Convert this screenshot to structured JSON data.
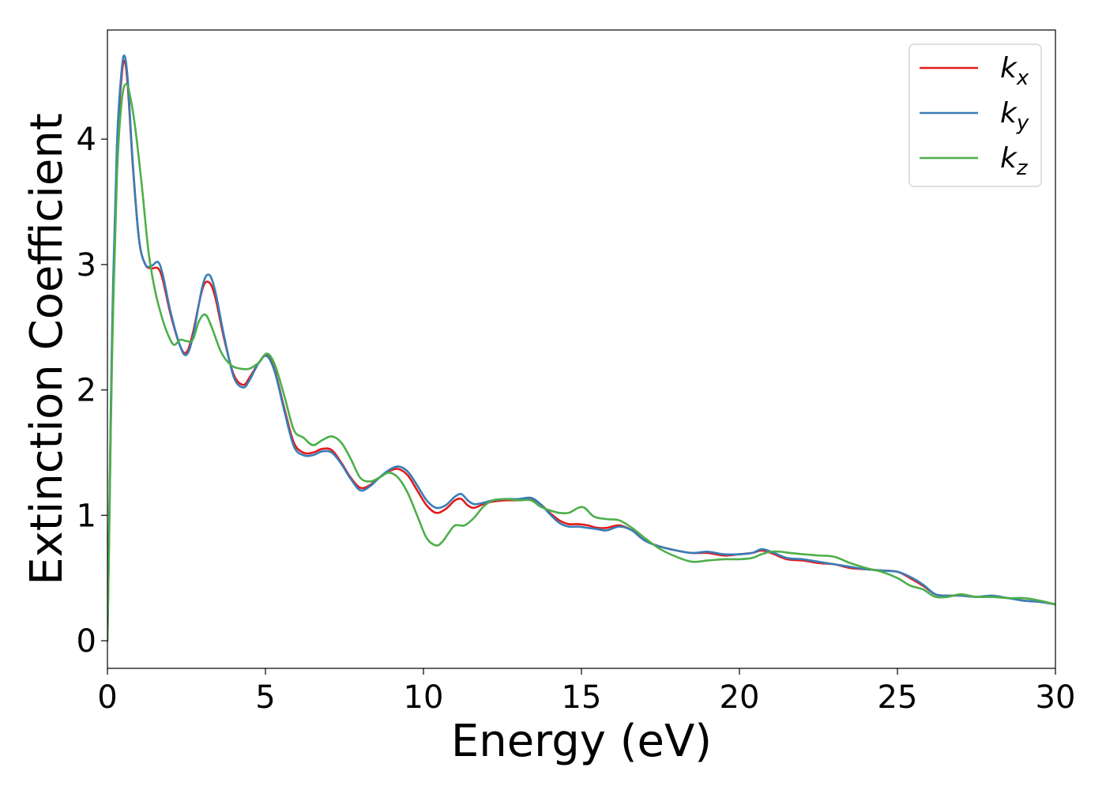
{
  "chart_data": {
    "type": "line",
    "title": "",
    "xlabel": "Energy (eV)",
    "ylabel": "Extinction Coefficient",
    "xlim": [
      0,
      30
    ],
    "ylim": [
      -0.22,
      4.87
    ],
    "xticks": [
      0,
      5,
      10,
      15,
      20,
      25,
      30
    ],
    "yticks": [
      0,
      1,
      2,
      3,
      4
    ],
    "grid": false,
    "legend_position": "top-right",
    "series": [
      {
        "name": "k",
        "subscript": "x",
        "color": "#e41a1c",
        "x": [
          0,
          0.05,
          0.15,
          0.3,
          0.45,
          0.55,
          0.65,
          0.8,
          1.0,
          1.2,
          1.4,
          1.6,
          1.75,
          2.0,
          2.3,
          2.5,
          2.7,
          3.0,
          3.2,
          3.4,
          3.7,
          4.0,
          4.3,
          4.5,
          4.8,
          5.05,
          5.3,
          5.6,
          5.9,
          6.2,
          6.5,
          6.8,
          7.1,
          7.4,
          7.7,
          8.0,
          8.3,
          8.6,
          8.9,
          9.2,
          9.5,
          9.8,
          10.1,
          10.4,
          10.7,
          11.0,
          11.2,
          11.4,
          11.6,
          11.9,
          12.2,
          12.6,
          13.0,
          13.4,
          13.7,
          14.0,
          14.3,
          14.6,
          14.9,
          15.2,
          15.5,
          15.8,
          16.2,
          16.6,
          17.0,
          17.5,
          18.0,
          18.5,
          19.0,
          19.5,
          20.0,
          20.4,
          20.7,
          21.0,
          21.5,
          22.0,
          22.5,
          23.0,
          23.5,
          24.0,
          24.5,
          25.0,
          25.4,
          25.8,
          26.2,
          26.6,
          27.0,
          27.5,
          28.0,
          28.5,
          29.0,
          29.5,
          30.0
        ],
        "y": [
          0,
          0.8,
          2.4,
          3.9,
          4.5,
          4.62,
          4.4,
          3.8,
          3.2,
          3.0,
          2.97,
          2.97,
          2.88,
          2.6,
          2.35,
          2.3,
          2.45,
          2.8,
          2.86,
          2.75,
          2.4,
          2.12,
          2.04,
          2.1,
          2.22,
          2.28,
          2.15,
          1.85,
          1.58,
          1.5,
          1.5,
          1.53,
          1.52,
          1.42,
          1.3,
          1.22,
          1.24,
          1.3,
          1.35,
          1.37,
          1.32,
          1.2,
          1.08,
          1.02,
          1.05,
          1.12,
          1.13,
          1.08,
          1.06,
          1.09,
          1.11,
          1.12,
          1.12,
          1.13,
          1.09,
          1.02,
          0.96,
          0.93,
          0.93,
          0.92,
          0.9,
          0.9,
          0.92,
          0.88,
          0.8,
          0.75,
          0.72,
          0.7,
          0.7,
          0.68,
          0.69,
          0.7,
          0.72,
          0.7,
          0.65,
          0.64,
          0.62,
          0.61,
          0.58,
          0.57,
          0.56,
          0.55,
          0.5,
          0.44,
          0.37,
          0.36,
          0.36,
          0.35,
          0.35,
          0.34,
          0.32,
          0.31,
          0.29
        ]
      },
      {
        "name": "k",
        "subscript": "y",
        "color": "#377eb8",
        "x": [
          0,
          0.05,
          0.15,
          0.3,
          0.45,
          0.55,
          0.65,
          0.8,
          1.0,
          1.2,
          1.4,
          1.6,
          1.75,
          2.0,
          2.3,
          2.5,
          2.7,
          3.0,
          3.2,
          3.4,
          3.7,
          4.0,
          4.3,
          4.5,
          4.8,
          5.05,
          5.3,
          5.6,
          5.9,
          6.2,
          6.5,
          6.8,
          7.1,
          7.4,
          7.7,
          8.0,
          8.3,
          8.6,
          8.9,
          9.2,
          9.5,
          9.8,
          10.1,
          10.4,
          10.7,
          11.0,
          11.2,
          11.4,
          11.6,
          11.9,
          12.2,
          12.6,
          13.0,
          13.4,
          13.7,
          14.0,
          14.3,
          14.6,
          14.9,
          15.2,
          15.5,
          15.8,
          16.2,
          16.6,
          17.0,
          17.5,
          18.0,
          18.5,
          19.0,
          19.5,
          20.0,
          20.4,
          20.7,
          21.0,
          21.5,
          22.0,
          22.5,
          23.0,
          23.5,
          24.0,
          24.5,
          25.0,
          25.4,
          25.8,
          26.2,
          26.6,
          27.0,
          27.5,
          28.0,
          28.5,
          29.0,
          29.5,
          30.0
        ],
        "y": [
          0,
          0.85,
          2.5,
          3.95,
          4.55,
          4.66,
          4.45,
          3.82,
          3.2,
          3.0,
          2.99,
          3.02,
          2.92,
          2.62,
          2.35,
          2.28,
          2.42,
          2.82,
          2.92,
          2.8,
          2.42,
          2.1,
          2.02,
          2.08,
          2.22,
          2.27,
          2.14,
          1.83,
          1.55,
          1.48,
          1.48,
          1.51,
          1.5,
          1.41,
          1.29,
          1.2,
          1.23,
          1.3,
          1.36,
          1.39,
          1.35,
          1.24,
          1.12,
          1.06,
          1.08,
          1.15,
          1.17,
          1.12,
          1.09,
          1.1,
          1.12,
          1.13,
          1.13,
          1.14,
          1.09,
          1.01,
          0.94,
          0.91,
          0.91,
          0.9,
          0.89,
          0.88,
          0.91,
          0.88,
          0.8,
          0.75,
          0.72,
          0.7,
          0.71,
          0.69,
          0.69,
          0.7,
          0.73,
          0.71,
          0.66,
          0.65,
          0.63,
          0.61,
          0.59,
          0.57,
          0.56,
          0.55,
          0.51,
          0.45,
          0.37,
          0.36,
          0.36,
          0.35,
          0.36,
          0.34,
          0.32,
          0.31,
          0.29
        ]
      },
      {
        "name": "k",
        "subscript": "z",
        "color": "#4daf4a",
        "x": [
          0,
          0.05,
          0.15,
          0.3,
          0.45,
          0.6,
          0.75,
          0.9,
          1.1,
          1.3,
          1.5,
          1.7,
          1.9,
          2.1,
          2.3,
          2.5,
          2.7,
          2.9,
          3.1,
          3.3,
          3.6,
          3.9,
          4.2,
          4.5,
          4.8,
          5.05,
          5.3,
          5.6,
          5.9,
          6.2,
          6.5,
          6.8,
          7.1,
          7.4,
          7.7,
          8.0,
          8.3,
          8.6,
          8.9,
          9.2,
          9.5,
          9.8,
          10.1,
          10.4,
          10.6,
          10.8,
          11.0,
          11.3,
          11.6,
          11.9,
          12.2,
          12.6,
          13.0,
          13.4,
          13.7,
          14.0,
          14.3,
          14.6,
          14.9,
          15.1,
          15.4,
          15.8,
          16.2,
          16.6,
          17.0,
          17.5,
          18.0,
          18.5,
          19.0,
          19.5,
          20.0,
          20.4,
          20.7,
          21.0,
          21.3,
          21.6,
          22.0,
          22.5,
          23.0,
          23.5,
          24.0,
          24.5,
          25.0,
          25.4,
          25.8,
          26.2,
          26.6,
          27.0,
          27.5,
          28.0,
          28.5,
          29.0,
          29.5,
          30.0
        ],
        "y": [
          0,
          0.75,
          2.3,
          3.7,
          4.3,
          4.44,
          4.3,
          4.05,
          3.6,
          3.1,
          2.8,
          2.6,
          2.45,
          2.36,
          2.4,
          2.39,
          2.4,
          2.55,
          2.6,
          2.5,
          2.3,
          2.2,
          2.17,
          2.17,
          2.22,
          2.29,
          2.2,
          1.95,
          1.68,
          1.62,
          1.56,
          1.6,
          1.63,
          1.58,
          1.45,
          1.3,
          1.27,
          1.3,
          1.34,
          1.3,
          1.18,
          1.0,
          0.82,
          0.76,
          0.79,
          0.86,
          0.92,
          0.92,
          0.98,
          1.07,
          1.12,
          1.13,
          1.12,
          1.12,
          1.07,
          1.04,
          1.02,
          1.02,
          1.06,
          1.06,
          0.99,
          0.97,
          0.96,
          0.9,
          0.82,
          0.73,
          0.67,
          0.63,
          0.64,
          0.65,
          0.65,
          0.66,
          0.69,
          0.71,
          0.71,
          0.7,
          0.69,
          0.68,
          0.67,
          0.62,
          0.58,
          0.55,
          0.5,
          0.44,
          0.41,
          0.35,
          0.35,
          0.37,
          0.35,
          0.35,
          0.34,
          0.34,
          0.32,
          0.29
        ]
      }
    ]
  }
}
